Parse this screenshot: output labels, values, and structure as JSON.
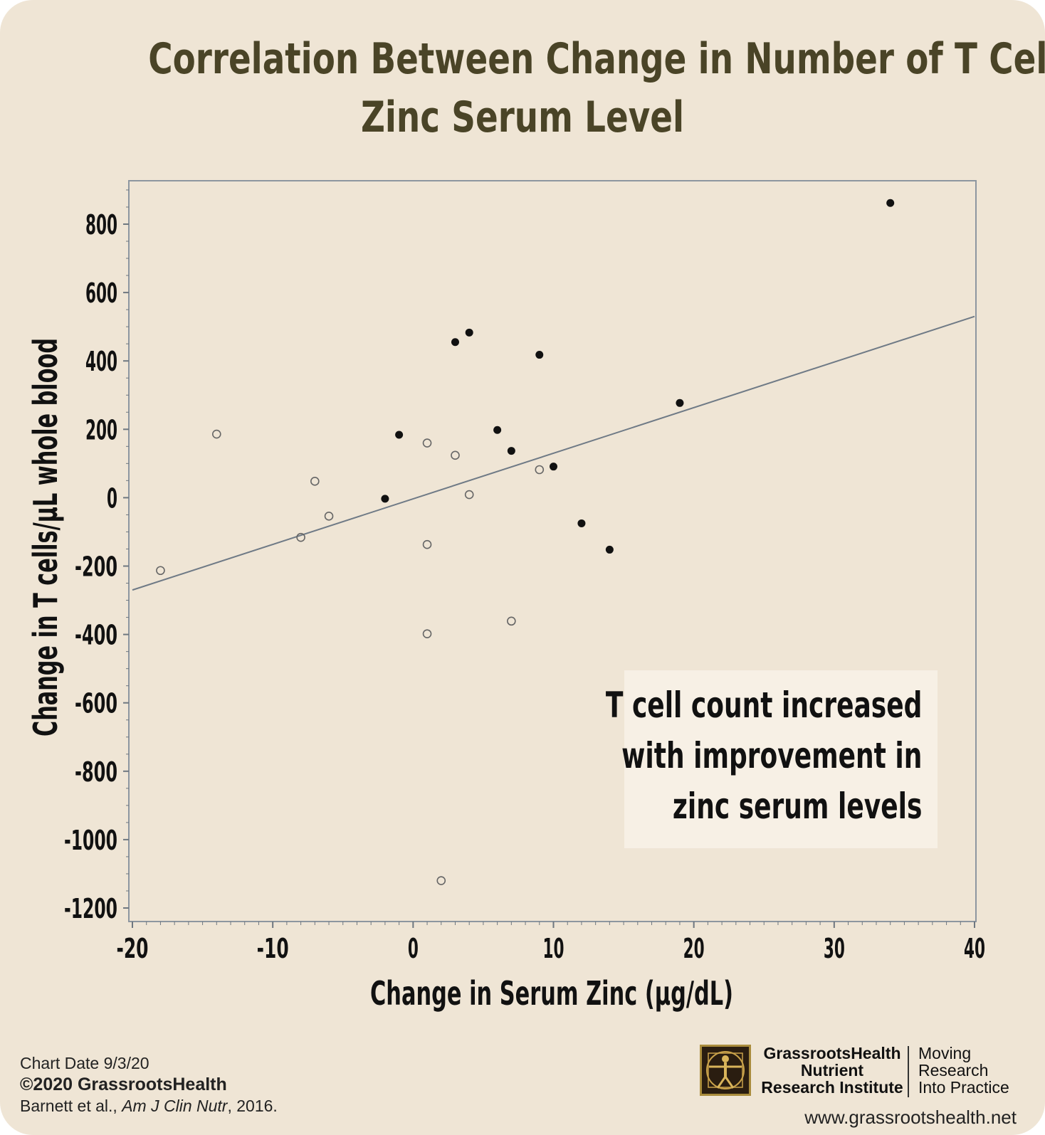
{
  "title": {
    "line1": "Correlation Between Change in Number of T Cells and",
    "line2": "Zinc Serum Level"
  },
  "chart_data": {
    "type": "scatter",
    "xlabel": "Change in Serum Zinc (µg/dL)",
    "ylabel": "Change in T cells/µL whole blood",
    "xlim": [
      -20,
      40
    ],
    "ylim": [
      -1270,
      920
    ],
    "x_ticks": [
      "-20",
      "-10",
      "0",
      "10",
      "20",
      "30",
      "40"
    ],
    "x_tick_values": [
      -20,
      -10,
      0,
      10,
      20,
      30,
      40
    ],
    "y_ticks": [
      "800",
      "600",
      "400",
      "200",
      "0",
      "-200",
      "-400",
      "-600",
      "-800",
      "-1000",
      "-1200"
    ],
    "y_tick_values": [
      800,
      600,
      400,
      200,
      0,
      -200,
      -400,
      -600,
      -800,
      -1000,
      -1200
    ],
    "grid": false,
    "series": [
      {
        "marker": "filled",
        "color": "#111111",
        "x": [
          34,
          3,
          4,
          9,
          19,
          -1,
          6,
          7,
          10,
          -2,
          12,
          14
        ],
        "y": [
          862,
          455,
          483,
          418,
          277,
          184,
          198,
          137,
          91,
          -3,
          -75,
          -152
        ]
      },
      {
        "marker": "open",
        "color": "#666666",
        "x": [
          -14,
          1,
          3,
          -7,
          9,
          4,
          -6,
          -8,
          1,
          -18,
          7,
          1,
          2
        ],
        "y": [
          186,
          160,
          124,
          48,
          82,
          9,
          -54,
          -116,
          -137,
          -213,
          -361,
          -398,
          -1120
        ]
      }
    ],
    "regression_line": {
      "x": [
        -20,
        40
      ],
      "y": [
        -270,
        530
      ]
    }
  },
  "callout": {
    "line1": "T cell count increased",
    "line2": "with improvement in",
    "line3": "zinc serum levels"
  },
  "footer": {
    "chart_date": "Chart Date 9/3/20",
    "copyright": "©2020 GrassrootsHealth",
    "citation_authors": "Barnett et al., ",
    "citation_journal": "Am J Clin Nutr",
    "citation_year": ", 2016.",
    "org_line1": "GrassrootsHealth",
    "org_line2": "Nutrient",
    "org_line3": "Research Institute",
    "tagline1": "Moving",
    "tagline2": "Research",
    "tagline3": "Into Practice",
    "url": "www.grassrootshealth.net"
  }
}
